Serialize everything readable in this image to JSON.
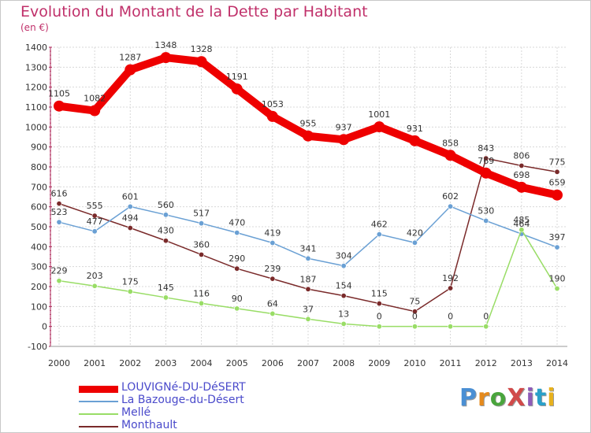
{
  "title": "Evolution du Montant de la Dette par Habitant",
  "subtitle": "(en €)",
  "logo": {
    "text": "ProXiti",
    "colors": [
      "#4a8fd4",
      "#e58a1c",
      "#49a53c",
      "#d14a4a",
      "#8e5bb8",
      "#2aa0c9",
      "#e7b11d"
    ]
  },
  "chart_data": {
    "type": "line",
    "title": "Evolution du Montant de la Dette par Habitant",
    "subtitle": "(en €)",
    "xlabel": "",
    "ylabel": "",
    "x": [
      "2000",
      "2001",
      "2002",
      "2003",
      "2004",
      "2005",
      "2006",
      "2007",
      "2008",
      "2009",
      "2010",
      "2011",
      "2012",
      "2013",
      "2014"
    ],
    "ylim": [
      -100,
      1400
    ],
    "yticks": [
      -100,
      0,
      100,
      200,
      300,
      400,
      500,
      600,
      700,
      800,
      900,
      1000,
      1100,
      1200,
      1300,
      1400
    ],
    "grid": true,
    "legend_position": "bottom-left",
    "series": [
      {
        "name": "LOUVIGNé-DU-DéSERT",
        "color": "#ee0000",
        "values": [
          1105,
          1082,
          1287,
          1348,
          1328,
          1191,
          1053,
          955,
          937,
          1001,
          931,
          858,
          769,
          698,
          659
        ],
        "labels": [
          "1105",
          "1082",
          "1287",
          "1348",
          "1328",
          "1191",
          "1053",
          "955",
          "937",
          "1001",
          "931",
          "858",
          "769",
          "698",
          "659"
        ]
      },
      {
        "name": "La Bazouge-du-Désert",
        "color": "#6aa0d4",
        "values": [
          523,
          477,
          601,
          560,
          517,
          470,
          419,
          341,
          304,
          462,
          420,
          602,
          530,
          464,
          397
        ],
        "labels": [
          "523",
          "477",
          "601",
          "560",
          "517",
          "470",
          "419",
          "341",
          "304",
          "462",
          "420",
          "602",
          "530",
          "464",
          "397"
        ]
      },
      {
        "name": "Mellé",
        "color": "#99dd66",
        "values": [
          229,
          203,
          175,
          145,
          116,
          90,
          64,
          37,
          13,
          0,
          0,
          0,
          0,
          485,
          190
        ],
        "labels": [
          "229",
          "203",
          "175",
          "145",
          "116",
          "90",
          "64",
          "37",
          "13",
          "0",
          "0",
          "0",
          "0",
          "485",
          "190"
        ]
      },
      {
        "name": "Monthault",
        "color": "#7a2a2a",
        "values": [
          616,
          555,
          494,
          430,
          360,
          290,
          239,
          187,
          154,
          115,
          75,
          192,
          843,
          806,
          775
        ],
        "labels": [
          "616",
          "555",
          "494",
          "430",
          "360",
          "290",
          "239",
          "187",
          "154",
          "115",
          "75",
          "192",
          "843",
          "806",
          "775"
        ]
      }
    ]
  }
}
